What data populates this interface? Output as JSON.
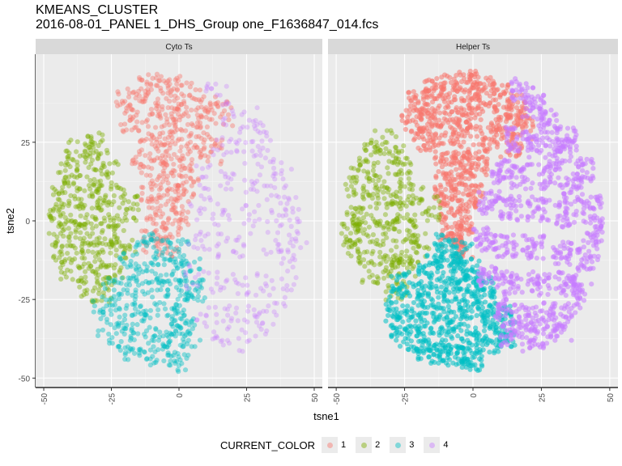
{
  "chart_data": {
    "type": "scatter",
    "title": "KMEANS_CLUSTER",
    "subtitle": "2016-08-01_PANEL 1_DHS_Group one_F1636847_014.fcs",
    "xlabel": "tsne1",
    "ylabel": "tsne2",
    "xlim": [
      -50,
      50
    ],
    "ylim": [
      -50,
      50
    ],
    "x_ticks": [
      -50,
      -25,
      0,
      25,
      50
    ],
    "y_ticks": [
      -50,
      -25,
      0,
      25
    ],
    "grid": true,
    "legend_title": "CURRENT_COLOR",
    "legend_position": "bottom",
    "legend": [
      {
        "label": "1",
        "color": "#F8766D"
      },
      {
        "label": "2",
        "color": "#7CAE00"
      },
      {
        "label": "3",
        "color": "#00BFC4"
      },
      {
        "label": "4",
        "color": "#C77CFF"
      }
    ],
    "facets": [
      {
        "label": "Cyto Ts",
        "clusters": [
          {
            "name": "1",
            "color": "#F8766D",
            "density": "moderate",
            "points": [
              [
                -20,
                38
              ],
              [
                -14,
                42
              ],
              [
                -8,
                43
              ],
              [
                -2,
                42
              ],
              [
                4,
                40
              ],
              [
                10,
                36
              ],
              [
                16,
                34
              ],
              [
                -18,
                32
              ],
              [
                -10,
                34
              ],
              [
                -4,
                36
              ],
              [
                2,
                34
              ],
              [
                8,
                30
              ],
              [
                -12,
                26
              ],
              [
                -6,
                28
              ],
              [
                0,
                26
              ],
              [
                6,
                24
              ],
              [
                12,
                22
              ],
              [
                -14,
                18
              ],
              [
                -8,
                20
              ],
              [
                -2,
                18
              ],
              [
                4,
                16
              ],
              [
                -10,
                10
              ],
              [
                -4,
                12
              ],
              [
                2,
                10
              ],
              [
                -8,
                4
              ],
              [
                -2,
                6
              ],
              [
                -6,
                -2
              ],
              [
                0,
                0
              ],
              [
                -10,
                -6
              ],
              [
                -4,
                -8
              ]
            ]
          },
          {
            "name": "2",
            "color": "#7CAE00",
            "density": "moderate",
            "points": [
              [
                -32,
                25
              ],
              [
                -38,
                22
              ],
              [
                -30,
                20
              ],
              [
                -42,
                16
              ],
              [
                -34,
                14
              ],
              [
                -26,
                15
              ],
              [
                -46,
                10
              ],
              [
                -40,
                8
              ],
              [
                -32,
                8
              ],
              [
                -24,
                8
              ],
              [
                -48,
                2
              ],
              [
                -42,
                1
              ],
              [
                -34,
                2
              ],
              [
                -26,
                2
              ],
              [
                -18,
                4
              ],
              [
                -48,
                -4
              ],
              [
                -40,
                -4
              ],
              [
                -32,
                -4
              ],
              [
                -24,
                -3
              ],
              [
                -44,
                -10
              ],
              [
                -36,
                -10
              ],
              [
                -28,
                -10
              ],
              [
                -20,
                -8
              ],
              [
                -40,
                -16
              ],
              [
                -32,
                -16
              ],
              [
                -24,
                -15
              ],
              [
                -34,
                -22
              ],
              [
                -26,
                -22
              ]
            ]
          },
          {
            "name": "3",
            "color": "#00BFC4",
            "density": "moderate",
            "points": [
              [
                -12,
                -8
              ],
              [
                -6,
                -10
              ],
              [
                0,
                -10
              ],
              [
                -18,
                -14
              ],
              [
                -10,
                -16
              ],
              [
                -2,
                -16
              ],
              [
                4,
                -16
              ],
              [
                -24,
                -22
              ],
              [
                -16,
                -22
              ],
              [
                -8,
                -22
              ],
              [
                0,
                -22
              ],
              [
                6,
                -22
              ],
              [
                -28,
                -28
              ],
              [
                -20,
                -30
              ],
              [
                -12,
                -30
              ],
              [
                -4,
                -30
              ],
              [
                2,
                -30
              ],
              [
                -26,
                -36
              ],
              [
                -18,
                -38
              ],
              [
                -10,
                -38
              ],
              [
                -2,
                -36
              ],
              [
                4,
                -36
              ],
              [
                -20,
                -44
              ],
              [
                -12,
                -44
              ],
              [
                -4,
                -42
              ],
              [
                0,
                -46
              ]
            ]
          },
          {
            "name": "4",
            "color": "#C77CFF",
            "density": "sparse",
            "points": [
              [
                14,
                40
              ],
              [
                20,
                34
              ],
              [
                26,
                32
              ],
              [
                30,
                28
              ],
              [
                16,
                24
              ],
              [
                24,
                22
              ],
              [
                32,
                20
              ],
              [
                38,
                16
              ],
              [
                10,
                14
              ],
              [
                18,
                12
              ],
              [
                28,
                12
              ],
              [
                36,
                8
              ],
              [
                42,
                4
              ],
              [
                8,
                4
              ],
              [
                16,
                2
              ],
              [
                26,
                2
              ],
              [
                36,
                0
              ],
              [
                44,
                -4
              ],
              [
                6,
                -6
              ],
              [
                14,
                -8
              ],
              [
                24,
                -8
              ],
              [
                34,
                -10
              ],
              [
                42,
                -12
              ],
              [
                6,
                -18
              ],
              [
                14,
                -20
              ],
              [
                22,
                -20
              ],
              [
                32,
                -20
              ],
              [
                40,
                -22
              ],
              [
                10,
                -30
              ],
              [
                18,
                -30
              ],
              [
                28,
                -30
              ],
              [
                36,
                -30
              ],
              [
                16,
                -38
              ],
              [
                26,
                -38
              ],
              [
                32,
                -36
              ]
            ]
          }
        ]
      },
      {
        "label": "Helper Ts",
        "clusters": [
          {
            "name": "1",
            "color": "#F8766D",
            "density": "dense",
            "points": [
              [
                -20,
                38
              ],
              [
                -14,
                42
              ],
              [
                -8,
                44
              ],
              [
                -2,
                44
              ],
              [
                4,
                42
              ],
              [
                10,
                40
              ],
              [
                16,
                36
              ],
              [
                -22,
                32
              ],
              [
                -14,
                34
              ],
              [
                -6,
                36
              ],
              [
                2,
                36
              ],
              [
                10,
                32
              ],
              [
                18,
                30
              ],
              [
                -18,
                26
              ],
              [
                -10,
                28
              ],
              [
                -2,
                28
              ],
              [
                6,
                26
              ],
              [
                14,
                24
              ],
              [
                -10,
                18
              ],
              [
                -4,
                20
              ],
              [
                2,
                18
              ],
              [
                -10,
                10
              ],
              [
                -4,
                12
              ],
              [
                0,
                8
              ],
              [
                -8,
                4
              ],
              [
                -4,
                0
              ],
              [
                -8,
                -4
              ],
              [
                -4,
                -8
              ]
            ]
          },
          {
            "name": "2",
            "color": "#7CAE00",
            "density": "moderate",
            "points": [
              [
                -32,
                25
              ],
              [
                -36,
                22
              ],
              [
                -28,
                20
              ],
              [
                -42,
                16
              ],
              [
                -34,
                14
              ],
              [
                -26,
                15
              ],
              [
                -46,
                10
              ],
              [
                -38,
                8
              ],
              [
                -30,
                8
              ],
              [
                -22,
                8
              ],
              [
                -46,
                2
              ],
              [
                -40,
                1
              ],
              [
                -32,
                2
              ],
              [
                -24,
                2
              ],
              [
                -16,
                4
              ],
              [
                -48,
                -4
              ],
              [
                -40,
                -4
              ],
              [
                -32,
                -4
              ],
              [
                -24,
                -3
              ],
              [
                -42,
                -10
              ],
              [
                -34,
                -10
              ],
              [
                -26,
                -10
              ],
              [
                -20,
                -8
              ],
              [
                -38,
                -16
              ],
              [
                -30,
                -16
              ],
              [
                -24,
                -15
              ],
              [
                -28,
                -22
              ]
            ]
          },
          {
            "name": "3",
            "color": "#00BFC4",
            "density": "dense",
            "points": [
              [
                -10,
                -8
              ],
              [
                -4,
                -10
              ],
              [
                -16,
                -14
              ],
              [
                -8,
                -16
              ],
              [
                0,
                -16
              ],
              [
                -26,
                -20
              ],
              [
                -18,
                -22
              ],
              [
                -10,
                -22
              ],
              [
                -2,
                -22
              ],
              [
                4,
                -22
              ],
              [
                -28,
                -28
              ],
              [
                -20,
                -30
              ],
              [
                -12,
                -30
              ],
              [
                -4,
                -30
              ],
              [
                4,
                -30
              ],
              [
                10,
                -30
              ],
              [
                -26,
                -36
              ],
              [
                -18,
                -38
              ],
              [
                -10,
                -38
              ],
              [
                -2,
                -38
              ],
              [
                6,
                -38
              ],
              [
                12,
                -36
              ],
              [
                -20,
                -44
              ],
              [
                -12,
                -44
              ],
              [
                -4,
                -44
              ],
              [
                0,
                -46
              ]
            ]
          },
          {
            "name": "4",
            "color": "#C77CFF",
            "density": "dense",
            "points": [
              [
                18,
                42
              ],
              [
                22,
                36
              ],
              [
                28,
                32
              ],
              [
                34,
                26
              ],
              [
                16,
                26
              ],
              [
                24,
                24
              ],
              [
                32,
                22
              ],
              [
                40,
                16
              ],
              [
                10,
                16
              ],
              [
                18,
                14
              ],
              [
                28,
                14
              ],
              [
                36,
                10
              ],
              [
                44,
                4
              ],
              [
                6,
                6
              ],
              [
                14,
                4
              ],
              [
                24,
                4
              ],
              [
                34,
                2
              ],
              [
                44,
                -4
              ],
              [
                4,
                -6
              ],
              [
                12,
                -8
              ],
              [
                22,
                -8
              ],
              [
                32,
                -10
              ],
              [
                42,
                -12
              ],
              [
                6,
                -18
              ],
              [
                14,
                -20
              ],
              [
                24,
                -20
              ],
              [
                34,
                -20
              ],
              [
                40,
                -22
              ],
              [
                12,
                -28
              ],
              [
                20,
                -30
              ],
              [
                28,
                -30
              ],
              [
                36,
                -30
              ],
              [
                14,
                -36
              ],
              [
                22,
                -38
              ],
              [
                30,
                -38
              ],
              [
                36,
                -38
              ]
            ]
          }
        ]
      }
    ]
  }
}
